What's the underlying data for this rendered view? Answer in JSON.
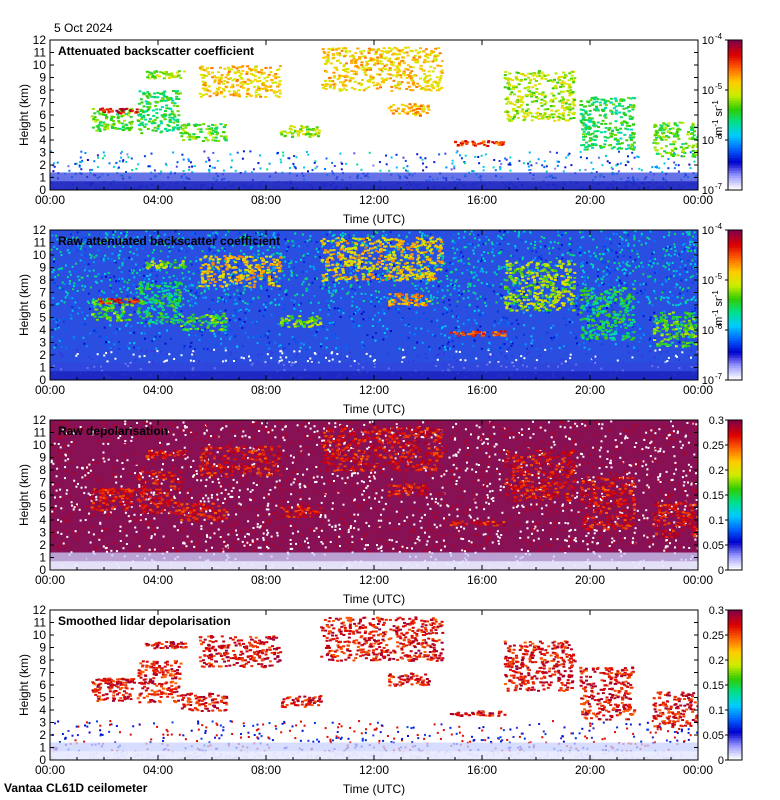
{
  "header": {
    "date": "5 Oct 2024"
  },
  "footer": {
    "instrument": "Vantaa CL61D ceilometer"
  },
  "colors": {
    "frame": "#000000",
    "colormap": [
      "#ffffff",
      "#9999ff",
      "#0000cc",
      "#0066ff",
      "#00ccff",
      "#00e08a",
      "#33cc00",
      "#ccee00",
      "#ffcc00",
      "#ff6600",
      "#dd0000",
      "#880044"
    ]
  },
  "chart_data": [
    {
      "type": "heatmap",
      "title": "Attenuated backscatter coefficient",
      "xlabel": "Time (UTC)",
      "ylabel": "Height (km)",
      "xticks": [
        "00:00",
        "04:00",
        "08:00",
        "12:00",
        "16:00",
        "20:00",
        "00:00"
      ],
      "yticks": [
        "0",
        "1",
        "2",
        "3",
        "4",
        "5",
        "6",
        "7",
        "8",
        "9",
        "10",
        "11",
        "12"
      ],
      "ylim": [
        0,
        12
      ],
      "colorbar": {
        "scale": "log",
        "ticks": [
          "10",
          "10",
          "10",
          "10"
        ],
        "exponents": [
          "-7",
          "-6",
          "-5",
          "-4"
        ],
        "unit": {
          "m": "m",
          "me": "-1",
          "sr": "sr",
          "sre": "-1"
        },
        "range": [
          1e-07,
          0.0001
        ]
      },
      "style": "clean"
    },
    {
      "type": "heatmap",
      "title": "Raw attenuated backscatter coefficient",
      "xlabel": "Time (UTC)",
      "ylabel": "Height (km)",
      "xticks": [
        "00:00",
        "04:00",
        "08:00",
        "12:00",
        "16:00",
        "20:00",
        "00:00"
      ],
      "yticks": [
        "0",
        "1",
        "2",
        "3",
        "4",
        "5",
        "6",
        "7",
        "8",
        "9",
        "10",
        "11",
        "12"
      ],
      "ylim": [
        0,
        12
      ],
      "colorbar": {
        "scale": "log",
        "ticks": [
          "10",
          "10",
          "10",
          "10"
        ],
        "exponents": [
          "-7",
          "-6",
          "-5",
          "-4"
        ],
        "unit": {
          "m": "m",
          "me": "-1",
          "sr": "sr",
          "sre": "-1"
        },
        "range": [
          1e-07,
          0.0001
        ]
      },
      "style": "raw"
    },
    {
      "type": "heatmap",
      "title": "Raw depolarisation",
      "xlabel": "Time (UTC)",
      "ylabel": "Height (km)",
      "xticks": [
        "00:00",
        "04:00",
        "08:00",
        "12:00",
        "16:00",
        "20:00",
        "00:00"
      ],
      "yticks": [
        "0",
        "1",
        "2",
        "3",
        "4",
        "5",
        "6",
        "7",
        "8",
        "9",
        "10",
        "11",
        "12"
      ],
      "ylim": [
        0,
        12
      ],
      "colorbar": {
        "scale": "linear",
        "ticks": [
          "0",
          "0.05",
          "0.1",
          "0.15",
          "0.2",
          "0.25",
          "0.3"
        ],
        "range": [
          0,
          0.3
        ]
      },
      "style": "noise"
    },
    {
      "type": "heatmap",
      "title": "Smoothed lidar depolarisation",
      "xlabel": "Time (UTC)",
      "ylabel": "Height (km)",
      "xticks": [
        "00:00",
        "04:00",
        "08:00",
        "12:00",
        "16:00",
        "20:00",
        "00:00"
      ],
      "yticks": [
        "0",
        "1",
        "2",
        "3",
        "4",
        "5",
        "6",
        "7",
        "8",
        "9",
        "10",
        "11",
        "12"
      ],
      "ylim": [
        0,
        12
      ],
      "colorbar": {
        "scale": "linear",
        "ticks": [
          "0",
          "0.05",
          "0.1",
          "0.15",
          "0.2",
          "0.25",
          "0.3"
        ],
        "range": [
          0,
          0.3
        ]
      },
      "style": "smooth"
    }
  ]
}
